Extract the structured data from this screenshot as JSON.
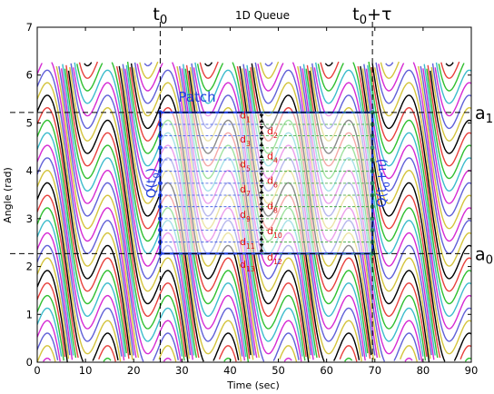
{
  "chart_data": {
    "type": "line",
    "title": "1D Queue",
    "xlabel": "Time (sec)",
    "ylabel": "Angle (rad)",
    "xlim": [
      0,
      90
    ],
    "ylim": [
      0,
      7
    ],
    "xticks": [
      "0",
      "10",
      "20",
      "30",
      "40",
      "50",
      "60",
      "70",
      "80",
      "90"
    ],
    "yticks": [
      "0",
      "1",
      "2",
      "3",
      "4",
      "5",
      "6",
      "7"
    ],
    "grid": false,
    "series_description": "wrapped phase trajectories descending from 2π to 0 with period 25 s; staircase wiggles every ~12 s",
    "angle_wrap": [
      0,
      6.28
    ],
    "period": 25,
    "n_curves": 24,
    "colors": [
      "#d4c43c",
      "#6060d8",
      "#d62ad4",
      "#3cbccc",
      "#30c030",
      "#e8403c",
      "#000000"
    ],
    "markers": {
      "t0": 25.5,
      "t0_plus_tau": 69.5,
      "a1": 5.22,
      "a0": 2.27,
      "t0_label": "t",
      "t0_sub": "0",
      "t0tau_label": "t",
      "t0tau_sub": "0",
      "t0tau_suffix": "+τ",
      "a1_label": "a",
      "a1_sub": "1",
      "a0_label": "a",
      "a0_sub": "0"
    },
    "patch": {
      "label": "Patch",
      "x0": 25.5,
      "x1": 69.5,
      "y0": 2.27,
      "y1": 5.22,
      "left_queue": "Q(t",
      "left_sub": "0",
      "left_close": ")",
      "right_queue": "Q(t",
      "right_sub": "0",
      "right_close": "+π)",
      "divider_x": 46.5,
      "d_labels_left": [
        {
          "n": "d",
          "s": "1",
          "y": 5.07
        },
        {
          "n": "d",
          "s": "3",
          "y": 4.57
        },
        {
          "n": "d",
          "s": "5",
          "y": 4.05
        },
        {
          "n": "d",
          "s": "7",
          "y": 3.53
        },
        {
          "n": "d",
          "s": "9",
          "y": 3.0
        },
        {
          "n": "d",
          "s": "11",
          "y": 2.43
        },
        {
          "n": "d",
          "s": "13",
          "y": 1.95
        }
      ],
      "d_labels_right": [
        {
          "n": "d",
          "s": "2",
          "y": 4.82
        },
        {
          "n": "d",
          "s": "4",
          "y": 4.3
        },
        {
          "n": "d",
          "s": "6",
          "y": 3.78
        },
        {
          "n": "d",
          "s": "8",
          "y": 3.25
        },
        {
          "n": "d",
          "s": "10",
          "y": 2.73
        },
        {
          "n": "d",
          "s": "12",
          "y": 2.18
        }
      ],
      "dots_y": [
        5.22,
        4.97,
        4.73,
        4.48,
        4.23,
        3.99,
        3.74,
        3.49,
        3.25,
        3.0,
        2.76,
        2.51,
        2.27
      ]
    }
  }
}
